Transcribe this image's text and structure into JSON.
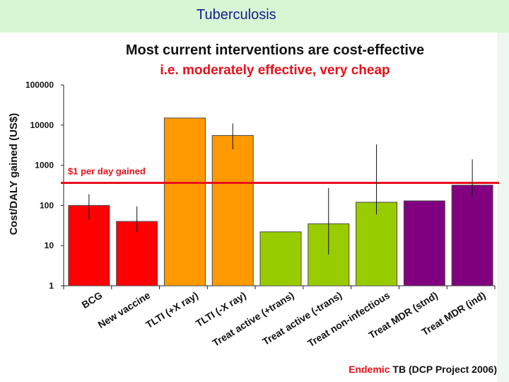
{
  "header": {
    "title": "Tuberculosis"
  },
  "chart_data": {
    "type": "bar",
    "title": "Most current interventions are cost-effective",
    "subtitle": "i.e. moderately effective, very cheap",
    "ylabel": "Cost/DALY gained (US$)",
    "xlabel": "",
    "yscale": "log",
    "ylim": [
      1,
      100000
    ],
    "yticks": [
      "100000",
      "10000",
      "1000",
      "100",
      "10",
      "1"
    ],
    "categories": [
      "BCG",
      "New vaccine",
      "TLTI (+X ray)",
      "TLTI (-X ray)",
      "Treat active (+trans)",
      "Treat active (-trans)",
      "Treat non-infectious",
      "Treat MDR (stnd)",
      "Treat MDR (ind)"
    ],
    "values": [
      100,
      40,
      15000,
      5500,
      22,
      35,
      120,
      130,
      320
    ],
    "error_low": [
      45,
      22,
      null,
      2500,
      null,
      6,
      60,
      null,
      170
    ],
    "error_high": [
      190,
      95,
      null,
      11000,
      null,
      270,
      3300,
      null,
      1400
    ],
    "colors": [
      "#ff0000",
      "#ff0000",
      "#ff9900",
      "#ff9900",
      "#99cc00",
      "#99cc00",
      "#99cc00",
      "#800080",
      "#800080"
    ],
    "reference_line": {
      "value": 365,
      "label": "$1 per day gained",
      "color": "#e8101a"
    },
    "source": {
      "highlight": "Endemic",
      "rest": " TB (DCP Project 2006)"
    }
  }
}
